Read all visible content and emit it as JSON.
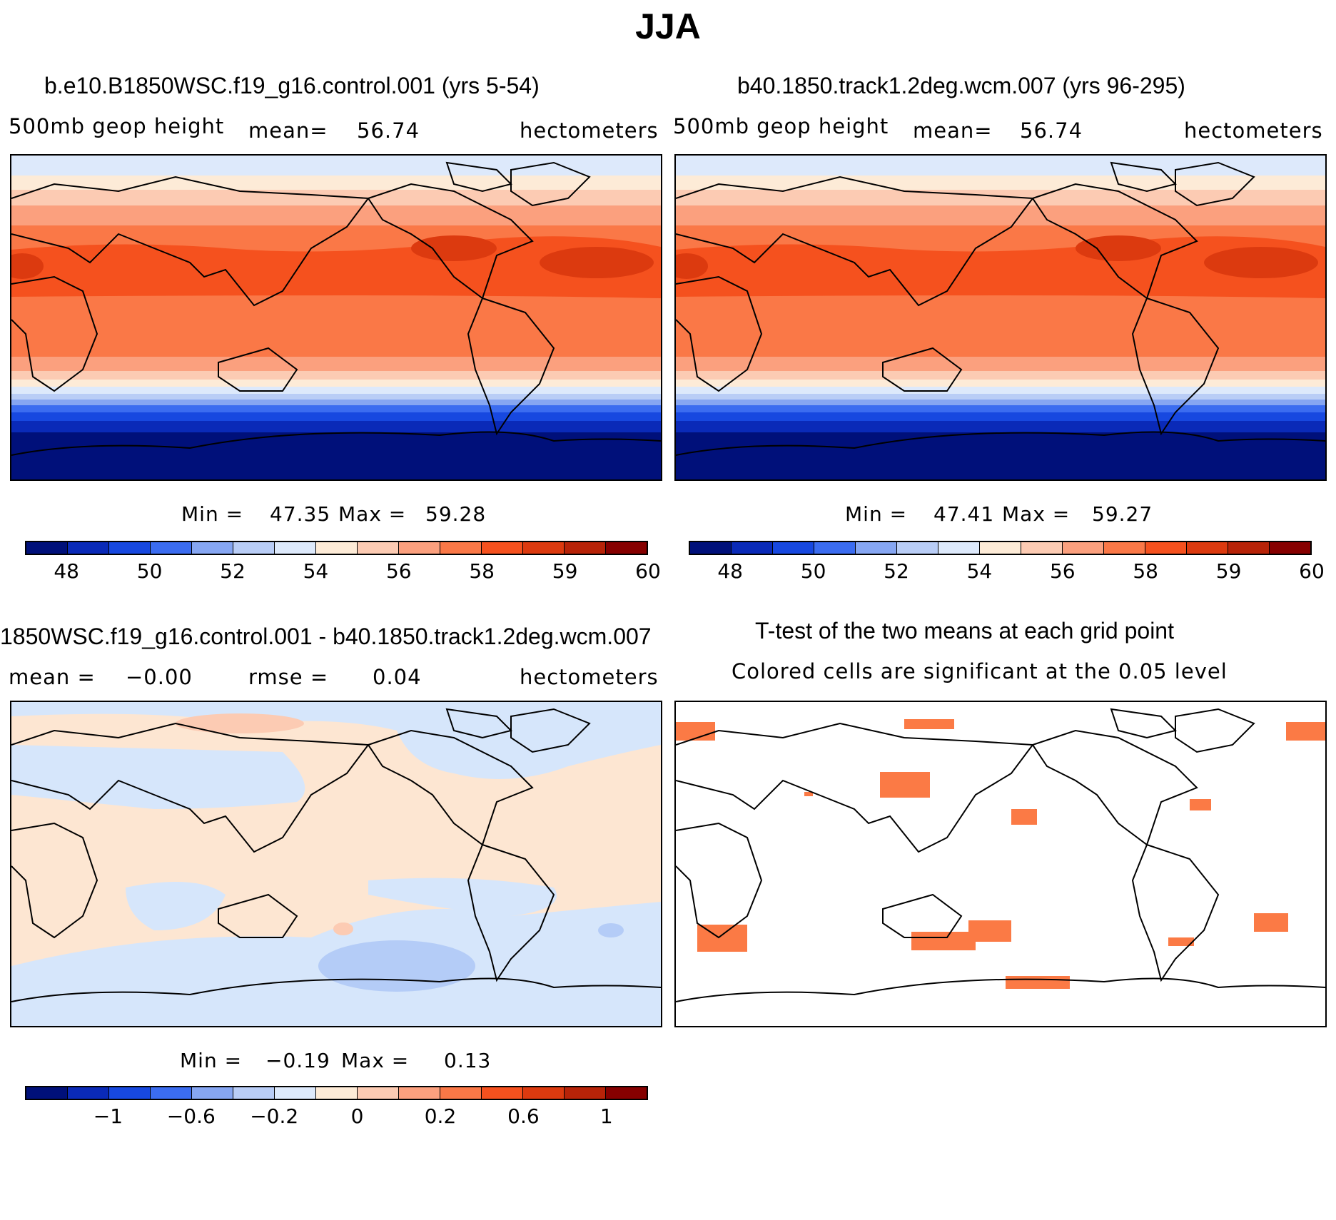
{
  "title": "JJA",
  "colors": {
    "scale": [
      "#00107a",
      "#0a2ab8",
      "#1748e0",
      "#3b6cf0",
      "#86a6f2",
      "#b9cdf6",
      "#dde9fb",
      "#fdebd7",
      "#fccbb3",
      "#fba07e",
      "#fa7847",
      "#f5511e",
      "#dc3a0f",
      "#b72308",
      "#860000"
    ],
    "diff_pos": "#fde6d2",
    "diff_neg": "#d6e6fb",
    "diff_neg2": "#b4ccf7",
    "sig": "#fb7a45",
    "coast": "#000000"
  },
  "panels": {
    "p1": {
      "title": "b.e10.B1850WSC.f19_g16.control.001 (yrs 5-54)",
      "variable": "500mb  geop  height",
      "mean_label": "mean=",
      "mean_value": "56.74",
      "units": "hectometers",
      "min_label": "Min =",
      "min_value": "47.35",
      "max_label": "Max =",
      "max_value": "59.28",
      "ticks": [
        "48",
        "50",
        "52",
        "54",
        "56",
        "58",
        "59",
        "60"
      ]
    },
    "p2": {
      "title": "b40.1850.track1.2deg.wcm.007 (yrs 96-295)",
      "variable": "500mb  geop  height",
      "mean_label": "mean=",
      "mean_value": "56.74",
      "units": "hectometers",
      "min_label": "Min =",
      "min_value": "47.41",
      "max_label": "Max =",
      "max_value": "59.27",
      "ticks": [
        "48",
        "50",
        "52",
        "54",
        "56",
        "58",
        "59",
        "60"
      ]
    },
    "p3": {
      "title": "1850WSC.f19_g16.control.001 - b40.1850.track1.2deg.wcm.007",
      "mean_label": "mean =",
      "mean_value": "−0.00",
      "rmse_label": "rmse =",
      "rmse_value": "0.04",
      "units": "hectometers",
      "min_label": "Min =",
      "min_value": "−0.19",
      "max_label": "Max =",
      "max_value": "0.13",
      "ticks": [
        "−1",
        "−0.6",
        "−0.2",
        "0",
        "0.2",
        "0.6",
        "1"
      ]
    },
    "p4": {
      "title": "T-test of the two means at each grid point",
      "subtitle": "Colored cells are significant at the 0.05 level"
    }
  }
}
